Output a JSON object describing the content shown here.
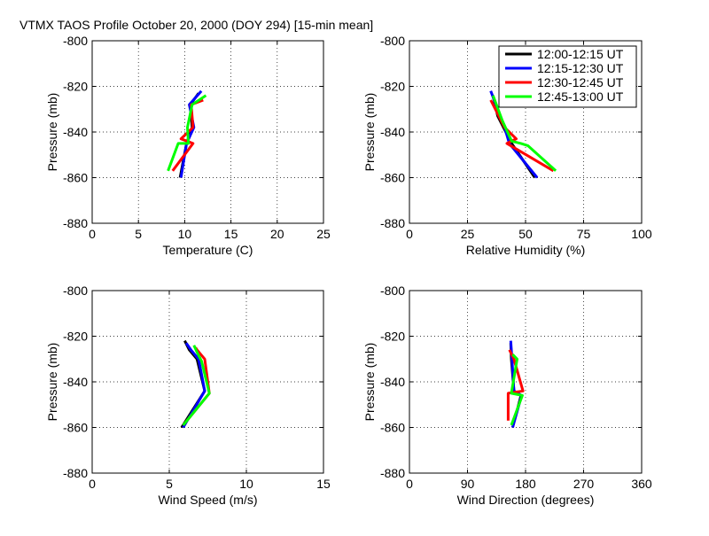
{
  "figure_title": "VTMX TAOS Profile   October 20, 2000 (DOY 294) [15-min mean]",
  "chart_data": [
    {
      "type": "line",
      "xlabel": "Temperature (C)",
      "ylabel": "Pressure (mb)",
      "xlim": [
        0,
        25
      ],
      "ylim": [
        -880,
        -800
      ],
      "xticks": [
        "0",
        "5",
        "10",
        "15",
        "20",
        "25"
      ],
      "yticks": [
        "-800",
        "-820",
        "-840",
        "-860",
        "-880"
      ],
      "grid": true,
      "series": [
        {
          "name": "12:00-12:15 UT",
          "color": "#000000",
          "x": [
            9.5,
            10.2,
            10.8,
            10.6,
            11.5
          ],
          "y": [
            -860,
            -845,
            -838,
            -828,
            -823
          ]
        },
        {
          "name": "12:15-12:30 UT",
          "color": "#0000ff",
          "x": [
            9.6,
            10.2,
            11.0,
            10.5,
            11.8
          ],
          "y": [
            -860,
            -845,
            -838,
            -828,
            -822
          ]
        },
        {
          "name": "12:30-12:45 UT",
          "color": "#ff0000",
          "x": [
            8.7,
            10.9,
            9.6,
            10.9,
            10.7,
            12.0
          ],
          "y": [
            -857,
            -845,
            -843,
            -838,
            -828,
            -826
          ]
        },
        {
          "name": "12:45-13:00 UT",
          "color": "#00ff00",
          "x": [
            8.2,
            9.3,
            10.4,
            10.3,
            10.8,
            12.3
          ],
          "y": [
            -857,
            -845,
            -845,
            -838,
            -828,
            -824
          ]
        }
      ]
    },
    {
      "type": "line",
      "xlabel": "Relative Humidity (%)",
      "ylabel": "Pressure (mb)",
      "xlim": [
        0,
        100
      ],
      "ylim": [
        -880,
        -800
      ],
      "xticks": [
        "0",
        "25",
        "50",
        "75",
        "100"
      ],
      "yticks": [
        "-800",
        "-820",
        "-840",
        "-860",
        "-880"
      ],
      "grid": true,
      "legend": "top-right",
      "series": [
        {
          "name": "12:00-12:15 UT",
          "color": "#000000",
          "x": [
            54,
            44,
            38,
            36
          ],
          "y": [
            -860,
            -845,
            -833,
            -824
          ]
        },
        {
          "name": "12:15-12:30 UT",
          "color": "#0000ff",
          "x": [
            55,
            43,
            41,
            35
          ],
          "y": [
            -860,
            -845,
            -838,
            -822
          ]
        },
        {
          "name": "12:30-12:45 UT",
          "color": "#ff0000",
          "x": [
            62,
            42,
            46,
            41,
            35
          ],
          "y": [
            -857,
            -845,
            -843,
            -838,
            -826
          ]
        },
        {
          "name": "12:45-13:00 UT",
          "color": "#00ff00",
          "x": [
            63,
            51,
            48,
            44,
            40,
            36
          ],
          "y": [
            -857,
            -846,
            -845,
            -844,
            -835,
            -824
          ]
        }
      ]
    },
    {
      "type": "line",
      "xlabel": "Wind Speed (m/s)",
      "ylabel": "Pressure (mb)",
      "xlim": [
        0,
        15
      ],
      "ylim": [
        -880,
        -800
      ],
      "xticks": [
        "0",
        "5",
        "10",
        "15"
      ],
      "yticks": [
        "-800",
        "-820",
        "-840",
        "-860",
        "-880"
      ],
      "grid": true,
      "series": [
        {
          "name": "12:00-12:15 UT",
          "color": "#000000",
          "x": [
            5.8,
            7.3,
            6.8,
            6.3,
            6.0
          ],
          "y": [
            -860,
            -844,
            -830,
            -826,
            -822
          ]
        },
        {
          "name": "12:15-12:30 UT",
          "color": "#0000ff",
          "x": [
            5.9,
            7.3,
            6.9,
            6.4,
            6.1
          ],
          "y": [
            -860,
            -844,
            -830,
            -826,
            -823
          ]
        },
        {
          "name": "12:30-12:45 UT",
          "color": "#ff0000",
          "x": [
            5.9,
            7.6,
            7.3,
            6.8,
            6.7
          ],
          "y": [
            -859,
            -845,
            -830,
            -826,
            -825
          ]
        },
        {
          "name": "12:45-13:00 UT",
          "color": "#00ff00",
          "x": [
            5.9,
            7.6,
            7.1,
            6.8,
            6.6
          ],
          "y": [
            -859,
            -845,
            -831,
            -827,
            -824
          ]
        }
      ]
    },
    {
      "type": "line",
      "xlabel": "Wind Direction (degrees)",
      "ylabel": "Pressure (mb)",
      "xlim": [
        0,
        360
      ],
      "ylim": [
        -880,
        -800
      ],
      "xticks": [
        "0",
        "90",
        "180",
        "270",
        "360"
      ],
      "yticks": [
        "-800",
        "-820",
        "-840",
        "-860",
        "-880"
      ],
      "grid": true,
      "series": [
        {
          "name": "12:00-12:15 UT",
          "color": "#000000",
          "x": [
            160,
            173,
            162,
            158,
            157
          ],
          "y": [
            -860,
            -846,
            -844,
            -830,
            -823
          ]
        },
        {
          "name": "12:15-12:30 UT",
          "color": "#0000ff",
          "x": [
            160,
            174,
            162,
            159,
            157
          ],
          "y": [
            -860,
            -846,
            -844,
            -830,
            -822
          ]
        },
        {
          "name": "12:30-12:45 UT",
          "color": "#ff0000",
          "x": [
            153,
            153,
            176,
            162,
            155
          ],
          "y": [
            -857,
            -845,
            -844,
            -830,
            -826
          ]
        },
        {
          "name": "12:45-13:00 UT",
          "color": "#00ff00",
          "x": [
            158,
            175,
            158,
            167,
            160
          ],
          "y": [
            -859,
            -846,
            -845,
            -830,
            -828
          ]
        }
      ]
    }
  ]
}
